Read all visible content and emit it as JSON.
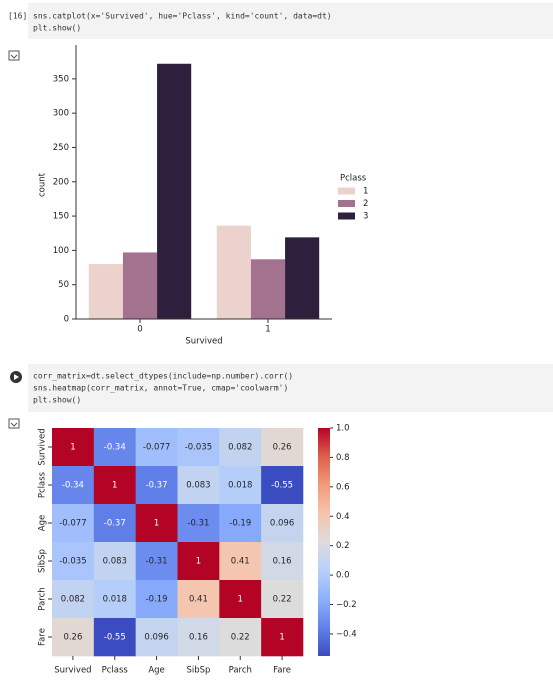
{
  "cells": [
    {
      "prompt": "[16]",
      "code": [
        "sns.catplot(x='Survived', hue='Pclass', kind='count', data=dt)",
        "plt.show()"
      ]
    },
    {
      "code": [
        "corr_matrix=dt.select_dtypes(include=np.number).corr()",
        "sns.heatmap(corr_matrix, annot=True, cmap='coolwarm')",
        "plt.show()"
      ]
    }
  ],
  "chart_data": [
    {
      "type": "bar",
      "categories": [
        "0",
        "1"
      ],
      "xlabel": "Survived",
      "ylabel": "count",
      "legend_title": "Pclass",
      "legend": "right",
      "series": [
        {
          "name": "1",
          "color": "#ebd2cd",
          "values": [
            80,
            136
          ]
        },
        {
          "name": "2",
          "color": "#a3728f",
          "values": [
            97,
            87
          ]
        },
        {
          "name": "3",
          "color": "#2e1f3d",
          "values": [
            372,
            119
          ]
        }
      ],
      "ylim": [
        0,
        390.6
      ],
      "yticks": [
        0,
        50,
        100,
        150,
        200,
        250,
        300,
        350
      ]
    },
    {
      "type": "heatmap",
      "cmap": "coolwarm",
      "x": [
        "Survived",
        "Pclass",
        "Age",
        "SibSp",
        "Parch",
        "Fare"
      ],
      "y": [
        "Survived",
        "Pclass",
        "Age",
        "SibSp",
        "Parch",
        "Fare"
      ],
      "values": [
        [
          1,
          -0.34,
          -0.077,
          -0.035,
          0.082,
          0.26
        ],
        [
          -0.34,
          1,
          -0.37,
          0.083,
          0.018,
          -0.55
        ],
        [
          -0.077,
          -0.37,
          1,
          -0.31,
          -0.19,
          0.096
        ],
        [
          -0.035,
          0.083,
          -0.31,
          1,
          0.41,
          0.16
        ],
        [
          0.082,
          0.018,
          -0.19,
          0.41,
          1,
          0.22
        ],
        [
          0.26,
          -0.55,
          0.096,
          0.16,
          0.22,
          1
        ]
      ],
      "clim": [
        -0.55,
        1
      ],
      "cticks": [
        {
          "value": 1.0,
          "label": "1.0"
        },
        0.8,
        0.6,
        0.4,
        0.2,
        {
          "value": 0.0,
          "label": "0.0"
        },
        {
          "value": -0.2,
          "label": "−0.2"
        },
        {
          "value": -0.4,
          "label": "−0.4"
        }
      ]
    }
  ]
}
